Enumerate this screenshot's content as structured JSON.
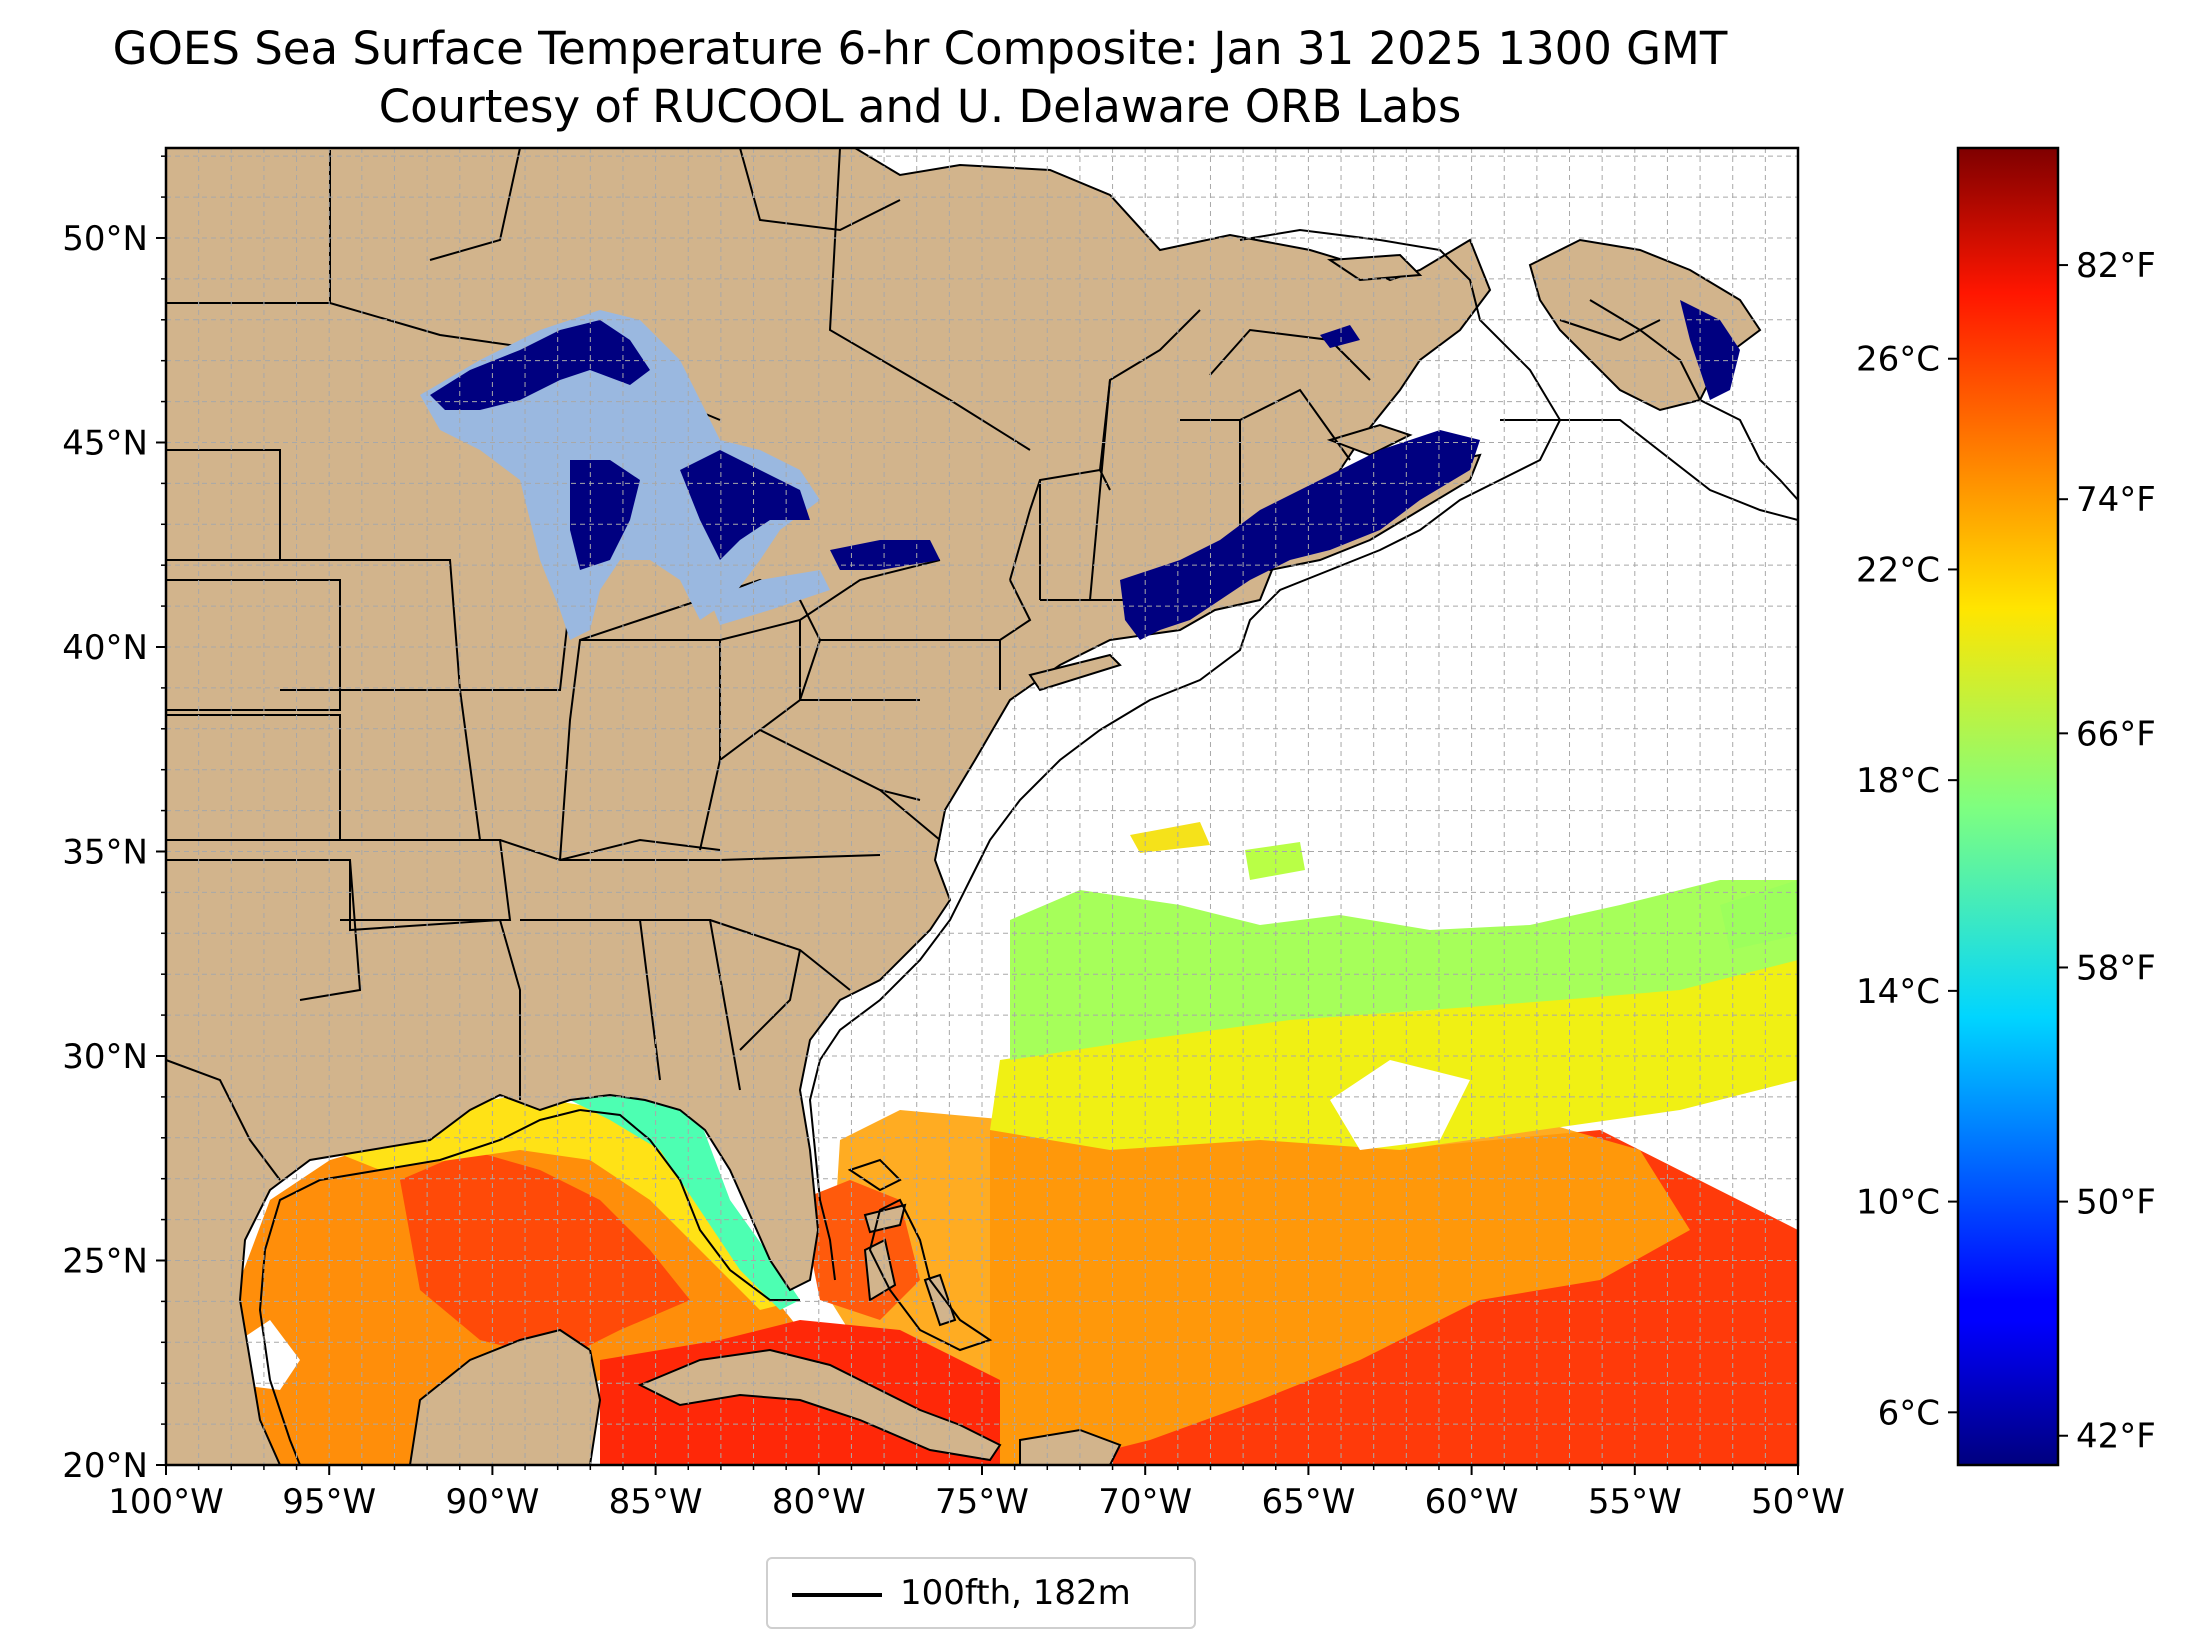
{
  "title": "GOES Sea Surface Temperature 6-hr Composite: Jan 31 2025 1300 GMT",
  "subtitle": "Courtesy of RUCOOL and U. Delaware ORB Labs",
  "map": {
    "lon_range": [
      -100,
      -50
    ],
    "lat_range": [
      20,
      52.2
    ],
    "land_color": "#d2b48c",
    "lake_ice_color": "#9ab8e0",
    "cold_water_color": "#000080",
    "grid": "dashed gray every 1 degree",
    "lat_ticks": [
      {
        "value": 20,
        "label": "20°N"
      },
      {
        "value": 25,
        "label": "25°N"
      },
      {
        "value": 30,
        "label": "30°N"
      },
      {
        "value": 35,
        "label": "35°N"
      },
      {
        "value": 40,
        "label": "40°N"
      },
      {
        "value": 45,
        "label": "45°N"
      },
      {
        "value": 50,
        "label": "50°N"
      }
    ],
    "lon_ticks": [
      {
        "value": -100,
        "label": "100°W"
      },
      {
        "value": -95,
        "label": "95°W"
      },
      {
        "value": -90,
        "label": "90°W"
      },
      {
        "value": -85,
        "label": "85°W"
      },
      {
        "value": -80,
        "label": "80°W"
      },
      {
        "value": -75,
        "label": "75°W"
      },
      {
        "value": -70,
        "label": "70°W"
      },
      {
        "value": -65,
        "label": "65°W"
      },
      {
        "value": -60,
        "label": "60°W"
      },
      {
        "value": -55,
        "label": "55°W"
      },
      {
        "value": -50,
        "label": "50°W"
      }
    ]
  },
  "legend": {
    "label": "100fth, 182m",
    "line_color": "#000000"
  },
  "colorbar": {
    "colormap": "jet",
    "range_c": [
      5,
      30
    ],
    "celsius_ticks": [
      {
        "value": 6,
        "label": "6°C"
      },
      {
        "value": 10,
        "label": "10°C"
      },
      {
        "value": 14,
        "label": "14°C"
      },
      {
        "value": 18,
        "label": "18°C"
      },
      {
        "value": 22,
        "label": "22°C"
      },
      {
        "value": 26,
        "label": "26°C"
      }
    ],
    "fahrenheit_ticks": [
      {
        "value": 42,
        "label": "42°F"
      },
      {
        "value": 50,
        "label": "50°F"
      },
      {
        "value": 58,
        "label": "58°F"
      },
      {
        "value": 66,
        "label": "66°F"
      },
      {
        "value": 74,
        "label": "74°F"
      },
      {
        "value": 82,
        "label": "82°F"
      }
    ]
  }
}
